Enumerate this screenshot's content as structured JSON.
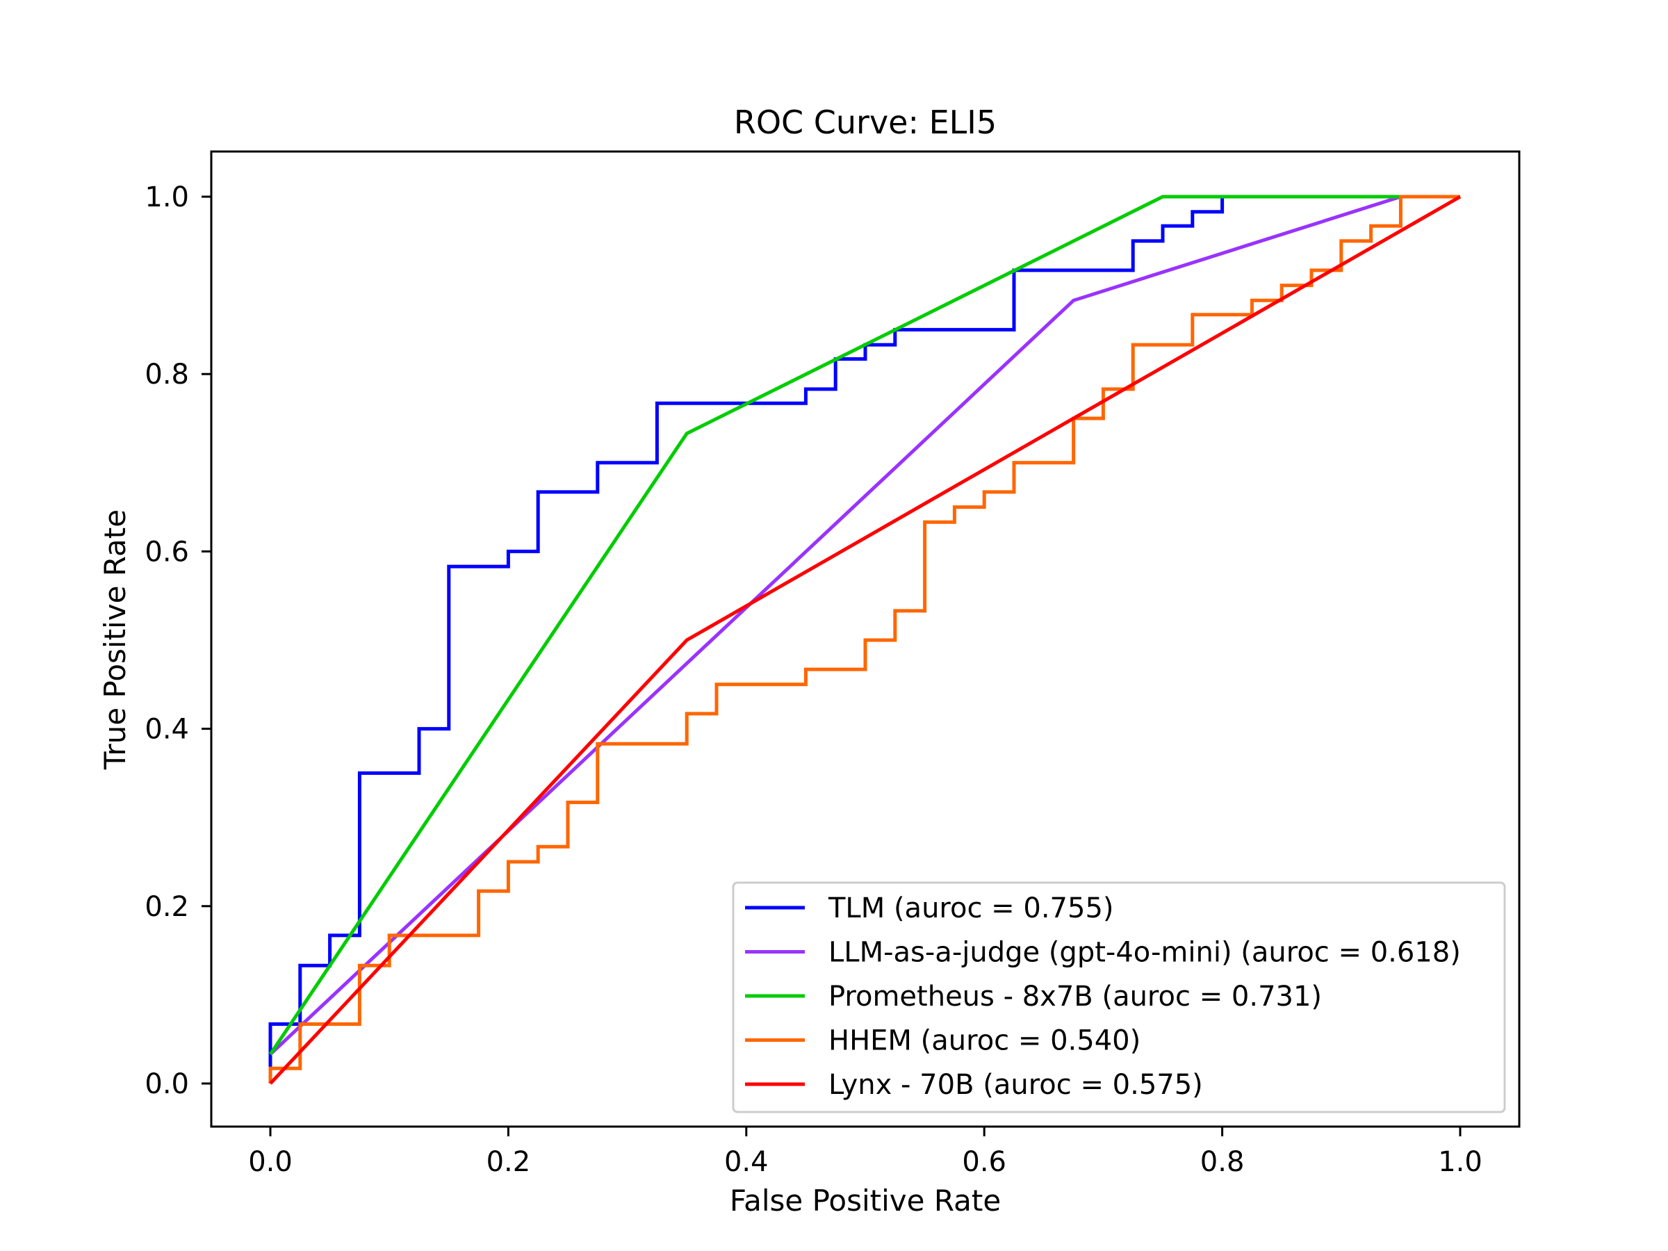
{
  "chart_data": {
    "type": "line",
    "title": "ROC Curve: ELI5",
    "xlabel": "False Positive Rate",
    "ylabel": "True Positive Rate",
    "xlim": [
      -0.05,
      1.05
    ],
    "ylim": [
      -0.05,
      1.05
    ],
    "xticks": [
      "0.0",
      "0.2",
      "0.4",
      "0.6",
      "0.8",
      "1.0"
    ],
    "yticks": [
      "0.0",
      "0.2",
      "0.4",
      "0.6",
      "0.8",
      "1.0"
    ],
    "grid": false,
    "legend_position": "lower right",
    "series": [
      {
        "name": "TLM (auroc = 0.755)",
        "color": "#0000ff",
        "x": [
          0,
          0,
          0,
          0.025,
          0.025,
          0.05,
          0.05,
          0.075,
          0.075,
          0.125,
          0.125,
          0.15,
          0.15,
          0.2,
          0.2,
          0.225,
          0.225,
          0.275,
          0.275,
          0.325,
          0.325,
          0.45,
          0.45,
          0.475,
          0.475,
          0.5,
          0.5,
          0.525,
          0.525,
          0.625,
          0.625,
          0.725,
          0.725,
          0.75,
          0.75,
          0.775,
          0.775,
          0.8,
          0.8,
          1.0
        ],
        "y": [
          0,
          0.033,
          0.067,
          0.067,
          0.133,
          0.133,
          0.167,
          0.167,
          0.35,
          0.35,
          0.4,
          0.4,
          0.583,
          0.583,
          0.6,
          0.6,
          0.667,
          0.667,
          0.7,
          0.7,
          0.767,
          0.767,
          0.783,
          0.783,
          0.817,
          0.817,
          0.833,
          0.833,
          0.85,
          0.85,
          0.917,
          0.917,
          0.95,
          0.95,
          0.967,
          0.967,
          0.983,
          0.983,
          1.0,
          1.0
        ]
      },
      {
        "name": "LLM-as-a-judge (gpt-4o-mini) (auroc = 0.618)",
        "color": "#9933ff",
        "x": [
          0,
          0.675,
          0.95,
          1.0
        ],
        "y": [
          0.033,
          0.883,
          1.0,
          1.0
        ]
      },
      {
        "name": "Prometheus - 8x7B (auroc = 0.731)",
        "color": "#00cc00",
        "x": [
          0,
          0.35,
          0.75,
          1.0
        ],
        "y": [
          0.033,
          0.733,
          1.0,
          1.0
        ]
      },
      {
        "name": "HHEM (auroc = 0.540)",
        "color": "#ff6600",
        "x": [
          0,
          0,
          0.025,
          0.025,
          0.075,
          0.075,
          0.1,
          0.1,
          0.175,
          0.175,
          0.2,
          0.2,
          0.225,
          0.225,
          0.25,
          0.25,
          0.275,
          0.275,
          0.35,
          0.35,
          0.375,
          0.375,
          0.45,
          0.45,
          0.5,
          0.5,
          0.525,
          0.525,
          0.55,
          0.55,
          0.575,
          0.575,
          0.6,
          0.6,
          0.625,
          0.625,
          0.675,
          0.675,
          0.7,
          0.7,
          0.725,
          0.725,
          0.775,
          0.775,
          0.825,
          0.825,
          0.85,
          0.85,
          0.875,
          0.875,
          0.9,
          0.9,
          0.925,
          0.925,
          0.95,
          0.95,
          1.0
        ],
        "y": [
          0,
          0.017,
          0.017,
          0.067,
          0.067,
          0.133,
          0.133,
          0.167,
          0.167,
          0.217,
          0.217,
          0.25,
          0.25,
          0.267,
          0.267,
          0.317,
          0.317,
          0.383,
          0.383,
          0.417,
          0.417,
          0.45,
          0.45,
          0.467,
          0.467,
          0.5,
          0.5,
          0.533,
          0.533,
          0.633,
          0.633,
          0.65,
          0.65,
          0.667,
          0.667,
          0.7,
          0.7,
          0.75,
          0.75,
          0.783,
          0.783,
          0.833,
          0.833,
          0.867,
          0.867,
          0.883,
          0.883,
          0.9,
          0.9,
          0.917,
          0.917,
          0.95,
          0.95,
          0.967,
          0.967,
          1.0,
          1.0
        ]
      },
      {
        "name": "Lynx - 70B (auroc = 0.575)",
        "color": "#ff0000",
        "x": [
          0,
          0.35,
          1.0
        ],
        "y": [
          0,
          0.5,
          1.0
        ]
      }
    ]
  }
}
